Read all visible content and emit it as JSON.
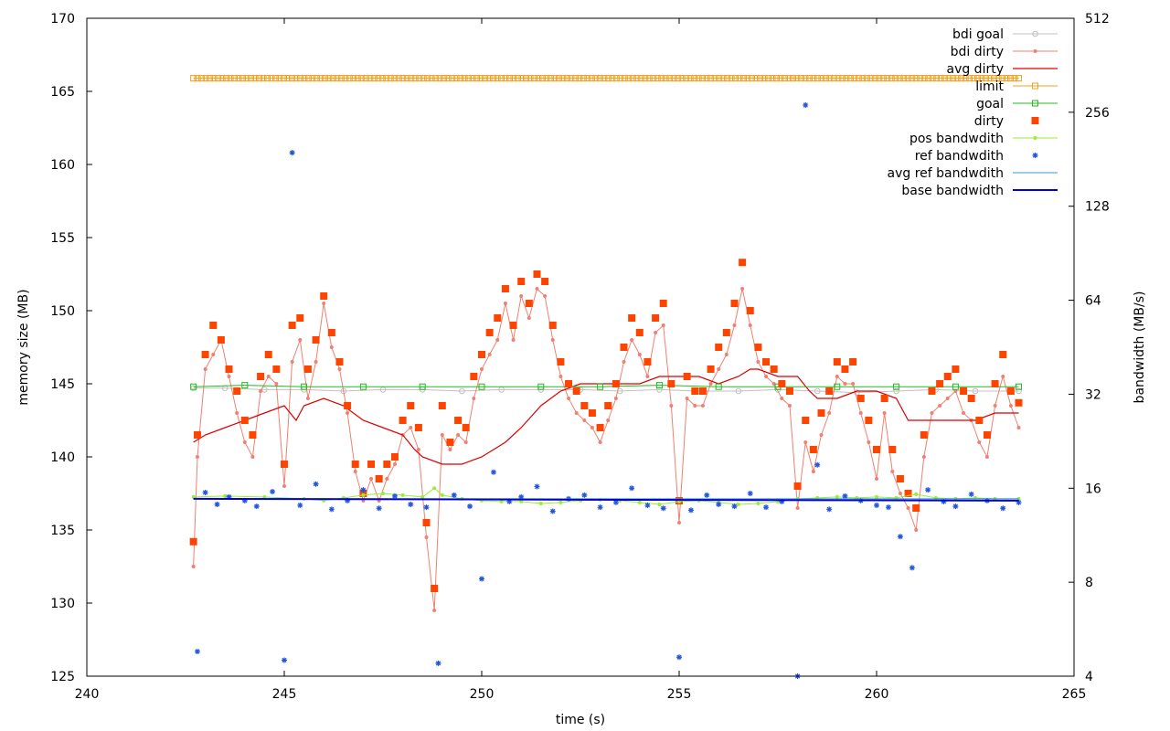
{
  "chart_data": {
    "type": "line",
    "title": "",
    "xlabel": "time (s)",
    "ylabel": "memory size (MB)",
    "y2label": "bandwidth (MB/s)",
    "xlim": [
      240,
      265
    ],
    "ylim": [
      125,
      170
    ],
    "y2lim": [
      4,
      512
    ],
    "y2scale": "log2",
    "xticks": [
      "240",
      "245",
      "250",
      "255",
      "260",
      "265"
    ],
    "yticks": [
      "125",
      "130",
      "135",
      "140",
      "145",
      "150",
      "155",
      "160",
      "165",
      "170"
    ],
    "y2ticks": [
      "4",
      "8",
      "16",
      "32",
      "64",
      "128",
      "256",
      "512"
    ],
    "grid": false,
    "legend_position": "top-right",
    "series": [
      {
        "name": "bdi goal",
        "axis": "y",
        "style": "line-points",
        "color": "#c0c0c0",
        "x": [
          242.7,
          243.5,
          244.5,
          245.5,
          246.5,
          247.5,
          248.5,
          249.5,
          250.5,
          251.5,
          252.5,
          253.5,
          254.5,
          255.5,
          256.5,
          257.5,
          258.5,
          259.5,
          260.5,
          261.5,
          262.5,
          263.6
        ],
        "y": [
          144.7,
          144.7,
          144.6,
          144.6,
          144.5,
          144.6,
          144.6,
          144.5,
          144.6,
          144.6,
          144.6,
          144.5,
          144.6,
          144.5,
          144.5,
          144.6,
          144.5,
          144.4,
          144.5,
          144.6,
          144.5,
          144.5
        ]
      },
      {
        "name": "bdi dirty",
        "axis": "y",
        "style": "line-points",
        "color": "#f08070",
        "x": [
          242.7,
          242.8,
          243.0,
          243.2,
          243.4,
          243.6,
          243.8,
          244.0,
          244.2,
          244.4,
          244.6,
          244.8,
          245.0,
          245.2,
          245.4,
          245.6,
          245.8,
          246.0,
          246.2,
          246.4,
          246.6,
          246.8,
          247.0,
          247.2,
          247.4,
          247.6,
          247.8,
          248.0,
          248.2,
          248.4,
          248.6,
          248.8,
          249.0,
          249.2,
          249.4,
          249.6,
          249.8,
          250.0,
          250.2,
          250.4,
          250.6,
          250.8,
          251.0,
          251.2,
          251.4,
          251.6,
          251.8,
          252.0,
          252.2,
          252.4,
          252.6,
          252.8,
          253.0,
          253.2,
          253.4,
          253.6,
          253.8,
          254.0,
          254.2,
          254.4,
          254.6,
          254.8,
          255.0,
          255.2,
          255.4,
          255.6,
          255.8,
          256.0,
          256.2,
          256.4,
          256.6,
          256.8,
          257.0,
          257.2,
          257.4,
          257.6,
          257.8,
          258.0,
          258.2,
          258.4,
          258.6,
          258.8,
          259.0,
          259.2,
          259.4,
          259.6,
          259.8,
          260.0,
          260.2,
          260.4,
          260.6,
          260.8,
          261.0,
          261.2,
          261.4,
          261.6,
          261.8,
          262.0,
          262.2,
          262.4,
          262.6,
          262.8,
          263.0,
          263.2,
          263.4,
          263.6
        ],
        "y": [
          132.5,
          140.0,
          146.0,
          147.0,
          148.0,
          145.5,
          143.0,
          141.0,
          140.0,
          144.5,
          145.5,
          145.0,
          138.0,
          146.5,
          148.0,
          144.0,
          146.5,
          150.5,
          147.5,
          146.0,
          143.0,
          139.0,
          137.0,
          138.5,
          137.0,
          138.5,
          139.5,
          141.5,
          142.0,
          140.5,
          134.5,
          129.5,
          141.5,
          140.5,
          141.5,
          141.0,
          144.0,
          146.0,
          147.0,
          148.0,
          150.5,
          148.0,
          151.0,
          149.5,
          151.5,
          151.0,
          148.0,
          145.5,
          144.0,
          143.0,
          142.5,
          142.0,
          141.0,
          142.5,
          144.0,
          146.5,
          148.0,
          147.0,
          145.5,
          148.5,
          149.0,
          143.5,
          135.5,
          144.0,
          143.5,
          143.5,
          145.0,
          146.0,
          147.0,
          149.0,
          151.5,
          149.0,
          146.5,
          145.5,
          145.0,
          144.0,
          143.5,
          136.5,
          141.0,
          139.0,
          141.5,
          143.0,
          145.5,
          145.0,
          145.0,
          143.0,
          141.0,
          138.5,
          143.0,
          139.0,
          137.5,
          136.5,
          135.0,
          140.0,
          143.0,
          143.5,
          144.0,
          144.5,
          143.0,
          142.5,
          141.0,
          140.0,
          143.5,
          145.5,
          143.5,
          142.0
        ]
      },
      {
        "name": "avg dirty",
        "axis": "y",
        "style": "line",
        "color": "#dd0000",
        "x": [
          242.7,
          243.0,
          243.5,
          244.0,
          244.5,
          245.0,
          245.3,
          245.5,
          246.0,
          246.5,
          247.0,
          247.5,
          248.0,
          248.3,
          248.5,
          249.0,
          249.5,
          250.0,
          250.3,
          250.6,
          251.0,
          251.5,
          252.0,
          252.5,
          253.0,
          253.5,
          254.0,
          254.5,
          255.0,
          255.5,
          256.0,
          256.5,
          256.8,
          257.0,
          257.5,
          258.0,
          258.3,
          258.5,
          259.0,
          259.5,
          260.0,
          260.5,
          260.8,
          261.0,
          261.5,
          262.0,
          262.5,
          263.0,
          263.6
        ],
        "y": [
          141.0,
          141.5,
          142.0,
          142.5,
          143.0,
          143.5,
          142.5,
          143.5,
          144.0,
          143.5,
          142.5,
          142.0,
          141.5,
          140.5,
          140.0,
          139.5,
          139.5,
          140.0,
          140.5,
          141.0,
          142.0,
          143.5,
          144.5,
          145.0,
          145.0,
          145.0,
          145.0,
          145.5,
          145.5,
          145.5,
          145.0,
          145.5,
          146.0,
          146.0,
          145.5,
          145.5,
          144.5,
          144.0,
          144.0,
          144.5,
          144.5,
          144.0,
          142.5,
          142.5,
          142.5,
          142.5,
          142.5,
          143.0,
          143.0
        ]
      },
      {
        "name": "limit",
        "axis": "y",
        "style": "line-points",
        "color": "#f0a020",
        "x": [
          242.7,
          263.6
        ],
        "y": [
          165.9,
          165.9
        ]
      },
      {
        "name": "goal",
        "axis": "y",
        "style": "line-points",
        "color": "#22bb22",
        "x": [
          242.7,
          244.0,
          245.5,
          247.0,
          248.5,
          250.0,
          251.5,
          253.0,
          254.5,
          256.0,
          257.5,
          259.0,
          260.5,
          262.0,
          263.6
        ],
        "y": [
          144.8,
          144.9,
          144.8,
          144.8,
          144.8,
          144.8,
          144.8,
          144.8,
          144.9,
          144.8,
          144.8,
          144.8,
          144.8,
          144.8,
          144.8
        ]
      },
      {
        "name": "dirty",
        "axis": "y",
        "style": "points",
        "color": "#ff4400",
        "x": [
          242.7,
          242.8,
          243.0,
          243.2,
          243.4,
          243.6,
          243.8,
          244.0,
          244.2,
          244.4,
          244.6,
          244.8,
          245.0,
          245.2,
          245.4,
          245.6,
          245.8,
          246.0,
          246.2,
          246.4,
          246.6,
          246.8,
          247.0,
          247.2,
          247.4,
          247.6,
          247.8,
          248.0,
          248.2,
          248.4,
          248.6,
          248.8,
          249.0,
          249.2,
          249.4,
          249.6,
          249.8,
          250.0,
          250.2,
          250.4,
          250.6,
          250.8,
          251.0,
          251.2,
          251.4,
          251.6,
          251.8,
          252.0,
          252.2,
          252.4,
          252.6,
          252.8,
          253.0,
          253.2,
          253.4,
          253.6,
          253.8,
          254.0,
          254.2,
          254.4,
          254.6,
          254.8,
          255.0,
          255.2,
          255.4,
          255.6,
          255.8,
          256.0,
          256.2,
          256.4,
          256.6,
          256.8,
          257.0,
          257.2,
          257.4,
          257.6,
          257.8,
          258.0,
          258.2,
          258.4,
          258.6,
          258.8,
          259.0,
          259.2,
          259.4,
          259.6,
          259.8,
          260.0,
          260.2,
          260.4,
          260.6,
          260.8,
          261.0,
          261.2,
          261.4,
          261.6,
          261.8,
          262.0,
          262.2,
          262.4,
          262.6,
          262.8,
          263.0,
          263.2,
          263.4,
          263.6
        ],
        "y": [
          134.2,
          141.5,
          147.0,
          149.0,
          148.0,
          146.0,
          144.5,
          142.5,
          141.5,
          145.5,
          147.0,
          146.0,
          139.5,
          149.0,
          149.5,
          146.0,
          148.0,
          151.0,
          148.5,
          146.5,
          143.5,
          139.5,
          137.5,
          139.5,
          138.5,
          139.5,
          140.0,
          142.5,
          143.5,
          142.0,
          135.5,
          131.0,
          143.5,
          141.0,
          142.5,
          142.0,
          145.5,
          147.0,
          148.5,
          149.5,
          151.5,
          149.0,
          152.0,
          150.5,
          152.5,
          152.0,
          149.0,
          146.5,
          145.0,
          144.5,
          143.5,
          143.0,
          142.0,
          143.5,
          145.0,
          147.5,
          149.5,
          148.5,
          146.5,
          149.5,
          150.5,
          145.0,
          137.0,
          145.5,
          144.5,
          144.5,
          146.0,
          147.5,
          148.5,
          150.5,
          153.3,
          150.0,
          147.5,
          146.5,
          146.0,
          145.0,
          144.5,
          138.0,
          142.5,
          140.5,
          143.0,
          144.5,
          146.5,
          146.0,
          146.5,
          144.0,
          142.5,
          140.5,
          144.0,
          140.5,
          138.5,
          137.5,
          136.5,
          141.5,
          144.5,
          145.0,
          145.5,
          146.0,
          144.5,
          144.0,
          142.5,
          141.5,
          145.0,
          147.0,
          144.5,
          143.7
        ]
      },
      {
        "name": "pos bandwdith",
        "axis": "y2",
        "style": "line-points",
        "color": "#99ee33",
        "x": [
          242.7,
          243.5,
          244.5,
          245.5,
          246.0,
          246.5,
          247.0,
          247.5,
          248.0,
          248.5,
          248.8,
          249.0,
          249.5,
          250.0,
          250.5,
          251.0,
          251.5,
          252.0,
          252.5,
          253.0,
          253.5,
          254.0,
          254.5,
          255.0,
          255.5,
          256.0,
          256.5,
          257.0,
          257.5,
          258.0,
          258.5,
          259.0,
          259.5,
          260.0,
          260.5,
          261.0,
          261.5,
          262.0,
          262.5,
          263.0,
          263.6
        ],
        "y": [
          15.0,
          15.1,
          15.0,
          14.8,
          14.6,
          14.9,
          15.2,
          15.4,
          15.2,
          15.0,
          16.0,
          15.2,
          14.8,
          14.6,
          14.5,
          14.5,
          14.3,
          14.4,
          14.6,
          14.7,
          14.6,
          14.4,
          14.2,
          14.5,
          14.6,
          14.4,
          14.2,
          14.3,
          14.5,
          14.8,
          14.9,
          15.0,
          14.9,
          15.0,
          14.9,
          15.3,
          14.9,
          14.8,
          14.9,
          14.8,
          14.8
        ]
      },
      {
        "name": "ref bandwdith",
        "axis": "y2",
        "style": "points",
        "color": "#2255dd",
        "x": [
          242.8,
          243.0,
          243.3,
          243.6,
          244.0,
          244.3,
          244.7,
          245.0,
          245.2,
          245.4,
          245.8,
          246.2,
          246.6,
          247.0,
          247.4,
          247.8,
          248.2,
          248.6,
          248.9,
          249.3,
          249.7,
          250.0,
          250.3,
          250.7,
          251.0,
          251.4,
          251.8,
          252.2,
          252.6,
          253.0,
          253.4,
          253.8,
          254.2,
          254.6,
          255.0,
          255.3,
          255.7,
          256.0,
          256.4,
          256.8,
          257.2,
          257.6,
          258.0,
          258.2,
          258.5,
          258.8,
          259.2,
          259.6,
          260.0,
          260.3,
          260.6,
          260.9,
          261.3,
          261.7,
          262.0,
          262.4,
          262.8,
          263.2,
          263.6
        ],
        "y": [
          4.8,
          15.5,
          14.2,
          15.0,
          14.6,
          14.0,
          15.6,
          4.5,
          190.0,
          14.1,
          16.5,
          13.7,
          14.6,
          15.8,
          13.8,
          15.1,
          14.2,
          13.9,
          4.4,
          15.2,
          14.0,
          8.2,
          18.0,
          14.5,
          15.0,
          16.2,
          13.5,
          14.8,
          15.2,
          13.9,
          14.4,
          16.0,
          14.1,
          13.8,
          4.6,
          13.6,
          15.2,
          14.2,
          14.0,
          15.4,
          13.9,
          14.5,
          4.0,
          270.0,
          19.0,
          13.7,
          15.1,
          14.6,
          14.1,
          13.9,
          11.2,
          8.9,
          15.8,
          14.5,
          14.0,
          15.3,
          14.6,
          13.8,
          14.4
        ]
      },
      {
        "name": "avg ref bandwdith",
        "axis": "y2",
        "style": "line",
        "color": "#3399cc",
        "x": [
          242.7,
          263.6
        ],
        "y": [
          14.8,
          14.8
        ]
      },
      {
        "name": "base bandwidth",
        "axis": "y2",
        "style": "line",
        "color": "#0000dd",
        "x": [
          242.7,
          263.6
        ],
        "y": [
          14.8,
          14.6
        ]
      }
    ]
  }
}
